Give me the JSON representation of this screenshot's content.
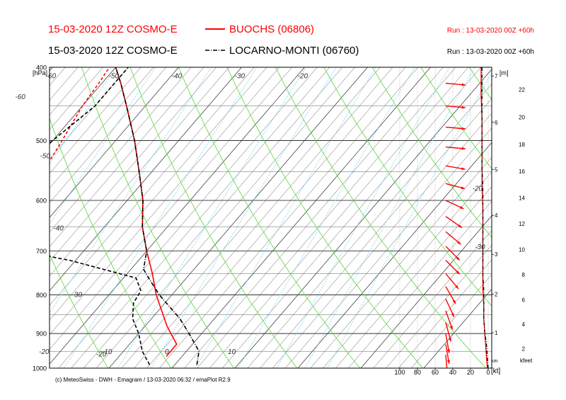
{
  "header": {
    "line1": "15-03-2020 12Z COSMO-E",
    "series1_name": "BUOCHS (06806)",
    "run1": "Run : 13-03-2020 00Z +60h",
    "line2": "15-03-2020 12Z COSMO-E",
    "series2_name": "LOCARNO-MONTI (06760)",
    "run2": "Run : 13-03-2020 00Z +60h"
  },
  "footer": "(c) MeteoSwiss - DWH - Emagram / 13-03-2020  06:32 / emaPlot R2.9",
  "colors": {
    "series1": "#ff0000",
    "series2": "#000000",
    "isotherm": "#444444",
    "dry_adiabat": "#66dd44",
    "mixing_ratio": "#66ccee",
    "isobar": "#333333"
  },
  "chart_data": {
    "type": "emagram",
    "y_axis": {
      "label": "[hPa]",
      "ticks": [
        "400",
        "500",
        "600",
        "700",
        "800",
        "900",
        "1000"
      ],
      "range_hPa": [
        400,
        1000
      ],
      "scale": "log"
    },
    "temperature_axis": {
      "ticks": [
        "10",
        "0",
        "-10",
        "-20",
        "-30"
      ],
      "range_C": [
        -60,
        30
      ]
    },
    "isotherm_labels": [
      {
        "text": "-60",
        "t": -60,
        "p": 410
      },
      {
        "text": "-50",
        "t": -50,
        "p": 410
      },
      {
        "text": "-40",
        "t": -40,
        "p": 410
      },
      {
        "text": "-30",
        "t": -30,
        "p": 410
      },
      {
        "text": "-20",
        "t": -20,
        "p": 410
      },
      {
        "text": "-60",
        "t": -62,
        "p": 437
      },
      {
        "text": "-50",
        "t": -50,
        "p": 523
      },
      {
        "text": "-40",
        "t": -38,
        "p": 652
      },
      {
        "text": "-30",
        "t": -26,
        "p": 798
      },
      {
        "text": "-20",
        "t": -14,
        "p": 957
      }
    ],
    "inner_labels": [
      {
        "text": "-20",
        "x_kt": 18,
        "p": 578
      },
      {
        "text": "-30",
        "x_kt": 15,
        "p": 690
      }
    ],
    "height_m_axis": {
      "label": "[m]",
      "ticks": [
        {
          "text": "7",
          "p": 411
        },
        {
          "text": "6",
          "p": 473
        },
        {
          "text": "5",
          "p": 546
        },
        {
          "text": "4",
          "p": 628
        },
        {
          "text": "3",
          "p": 707
        },
        {
          "text": "2",
          "p": 798
        },
        {
          "text": "1",
          "p": 898
        }
      ]
    },
    "height_kfeet_axis": {
      "label": "kfeet",
      "ticks": [
        "22",
        "20",
        "18",
        "16",
        "14",
        "12",
        "10",
        "8",
        "6",
        "4",
        "2"
      ],
      "values": [
        22,
        20,
        18,
        16,
        14,
        12,
        10,
        8,
        6,
        4,
        2
      ]
    },
    "wind_axis": {
      "label": "[kt]",
      "unit_label": "km",
      "ticks": [
        "100",
        "80",
        "60",
        "40",
        "20",
        "0"
      ],
      "values": [
        100,
        80,
        60,
        40,
        20,
        0
      ]
    },
    "series": [
      {
        "name": "BUOCHS (06806)",
        "temperature": {
          "p": [
            965,
            930,
            880,
            800,
            750,
            700,
            650,
            600,
            550,
            500,
            450,
            420,
            400
          ],
          "t": [
            -2.5,
            -2.5,
            -6.5,
            -12.5,
            -16,
            -20,
            -24,
            -27.5,
            -32,
            -37,
            -43,
            -47,
            -50
          ]
        },
        "dewpoint": {
          "p": [
            975,
            960,
            940,
            900,
            850,
            800,
            750,
            720,
            700,
            650,
            620,
            600,
            560,
            500,
            450,
            420,
            400
          ],
          "t": [
            -24,
            -23.5,
            -28,
            -30.5,
            -32,
            -34,
            -37,
            -39,
            -42,
            -46,
            -47,
            -45,
            -47,
            -48.5,
            -50,
            -50.5,
            -51
          ]
        }
      },
      {
        "name": "LOCARNO-MONTI (06760)",
        "temperature": {
          "p": [
            990,
            950,
            900,
            860,
            800,
            760,
            740,
            700,
            650,
            600,
            550,
            500,
            450,
            420,
            400
          ],
          "t": [
            3.5,
            2,
            -2,
            -5.5,
            -12,
            -16,
            -18,
            -20,
            -24,
            -27.5,
            -32,
            -37,
            -43,
            -47,
            -50
          ]
        },
        "dewpoint": {
          "p": [
            990,
            950,
            900,
            860,
            820,
            790,
            760,
            720,
            700,
            680,
            650,
            620,
            600,
            550,
            500,
            450,
            420,
            400
          ],
          "t": [
            -4,
            -7,
            -10,
            -13,
            -15,
            -15.5,
            -18,
            -31,
            -40,
            -50,
            -58,
            -60,
            -55,
            -52,
            -50,
            -48,
            -48,
            -48
          ]
        }
      }
    ],
    "wind_profiles": [
      {
        "name": "BUOCHS (06806)",
        "wind_kt": [
          1,
          2,
          3,
          4,
          5,
          5,
          6,
          6,
          6,
          6,
          6,
          6,
          7,
          7,
          7,
          7,
          8,
          8
        ]
      },
      {
        "name": "LOCARNO-MONTI (06760)",
        "wind_kt": [
          0,
          1,
          2,
          4,
          5,
          5,
          5,
          6,
          6,
          6,
          6,
          6,
          6,
          7,
          7,
          7,
          7,
          7
        ]
      }
    ],
    "wind_barbs": [
      {
        "p": 420,
        "dir": 275,
        "speed": 35
      },
      {
        "p": 450,
        "dir": 275,
        "speed": 35
      },
      {
        "p": 480,
        "dir": 275,
        "speed": 35
      },
      {
        "p": 510,
        "dir": 275,
        "speed": 35
      },
      {
        "p": 540,
        "dir": 280,
        "speed": 35
      },
      {
        "p": 570,
        "dir": 285,
        "speed": 35
      },
      {
        "p": 600,
        "dir": 295,
        "speed": 35
      },
      {
        "p": 630,
        "dir": 305,
        "speed": 35
      },
      {
        "p": 660,
        "dir": 310,
        "speed": 35
      },
      {
        "p": 690,
        "dir": 315,
        "speed": 35
      },
      {
        "p": 720,
        "dir": 315,
        "speed": 35
      },
      {
        "p": 750,
        "dir": 320,
        "speed": 35
      },
      {
        "p": 780,
        "dir": 330,
        "speed": 30
      },
      {
        "p": 810,
        "dir": 335,
        "speed": 30
      },
      {
        "p": 840,
        "dir": 340,
        "speed": 30
      },
      {
        "p": 870,
        "dir": 345,
        "speed": 30
      },
      {
        "p": 900,
        "dir": 350,
        "speed": 30
      },
      {
        "p": 930,
        "dir": 350,
        "speed": 30
      },
      {
        "p": 960,
        "dir": 355,
        "speed": 30
      }
    ]
  }
}
